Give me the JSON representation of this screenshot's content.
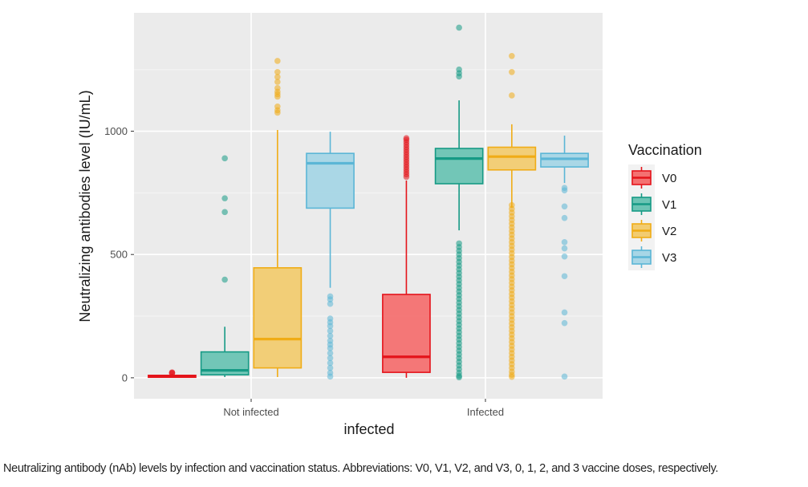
{
  "chart_data": {
    "type": "boxplot",
    "xlabel": "infected",
    "ylabel": "Neutralizing antibodies level (IU/mL)",
    "categories": [
      "Not infected",
      "Infected"
    ],
    "yticks": [
      0,
      500,
      1000
    ],
    "ylim": [
      -85,
      1480
    ],
    "grid": true,
    "legend": {
      "title": "Vaccination",
      "position": "right"
    },
    "series": [
      {
        "name": "V0",
        "color": "#e4141b",
        "fill": "#f47171",
        "boxes": [
          {
            "min": 0,
            "q1": 2,
            "median": 6,
            "q3": 10,
            "max": 16,
            "outliers": [
              18,
              20,
              22
            ]
          },
          {
            "min": 0,
            "q1": 22,
            "median": 85,
            "q3": 338,
            "max": 800,
            "outliers": [
              815,
              825,
              835,
              845,
              855,
              865,
              875,
              885,
              895,
              905,
              915,
              925,
              935,
              945,
              955,
              965,
              972
            ]
          }
        ]
      },
      {
        "name": "V1",
        "color": "#169a85",
        "fill": "#6cc4b4",
        "boxes": [
          {
            "min": 3,
            "q1": 12,
            "median": 30,
            "q3": 105,
            "max": 207,
            "outliers": [
              398,
              672,
              728,
              890
            ]
          },
          {
            "min": 598,
            "q1": 787,
            "median": 889,
            "q3": 930,
            "max": 1125,
            "outliers": [
              1222,
              1235,
              1250,
              1420,
              545,
              530,
              515,
              500,
              485,
              470,
              455,
              440,
              425,
              410,
              395,
              380,
              365,
              350,
              335,
              320,
              305,
              290,
              275,
              260,
              245,
              230,
              215,
              200,
              185,
              170,
              155,
              140,
              125,
              110,
              95,
              80,
              65,
              50,
              35,
              20,
              8,
              2
            ]
          }
        ]
      },
      {
        "name": "V2",
        "color": "#f0ac16",
        "fill": "#f2cc71",
        "boxes": [
          {
            "min": 3,
            "q1": 40,
            "median": 157,
            "q3": 446,
            "max": 1005,
            "outliers": [
              1075,
              1085,
              1100,
              1140,
              1150,
              1160,
              1175,
              1200,
              1220,
              1240,
              1285
            ]
          },
          {
            "min": 690,
            "q1": 843,
            "median": 897,
            "q3": 935,
            "max": 1028,
            "outliers": [
              1145,
              1240,
              1305,
              700,
              685,
              670,
              655,
              640,
              625,
              610,
              595,
              580,
              565,
              550,
              535,
              520,
              505,
              490,
              475,
              460,
              445,
              430,
              415,
              400,
              385,
              370,
              355,
              340,
              325,
              310,
              295,
              280,
              265,
              250,
              235,
              220,
              205,
              190,
              175,
              160,
              145,
              130,
              115,
              100,
              85,
              70,
              55,
              40,
              25,
              12,
              4
            ]
          }
        ]
      },
      {
        "name": "V3",
        "color": "#5bb6d6",
        "fill": "#a7d6e6",
        "boxes": [
          {
            "min": 365,
            "q1": 688,
            "median": 870,
            "q3": 910,
            "max": 998,
            "outliers": [
              330,
              318,
              300,
              240,
              225,
              210,
              190,
              170,
              150,
              135,
              120,
              100,
              80,
              60,
              40,
              20,
              5
            ]
          },
          {
            "min": 790,
            "q1": 855,
            "median": 888,
            "q3": 910,
            "max": 982,
            "outliers": [
              770,
              760,
              695,
              648,
              550,
              525,
              492,
              412,
              265,
              222,
              5
            ]
          }
        ]
      }
    ]
  },
  "caption": "Neutralizing antibody (nAb) levels by infection and vaccination status. Abbreviations: V0, V1, V2, and V3, 0, 1, 2, and 3 vaccine doses, respectively."
}
